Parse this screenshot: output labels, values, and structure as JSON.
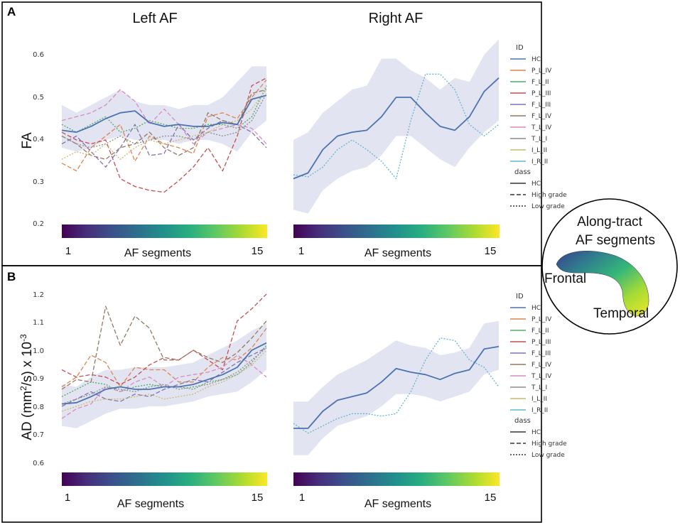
{
  "panels": [
    {
      "letter": "A",
      "ylabel": "FA",
      "yticks": [
        "0.2",
        "0.3",
        "0.4",
        "0.5",
        "0.6"
      ],
      "colorbar": {
        "min_label": "1",
        "max_label": "15",
        "label": "AF segments"
      }
    },
    {
      "letter": "B",
      "ylabel_main": "AD (mm",
      "ylabel_sup1": "2",
      "ylabel_mid": "/s) x 10",
      "ylabel_sup2": "-3",
      "yticks": [
        "0.6",
        "0.7",
        "0.8",
        "0.9",
        "1.0",
        "1.1",
        "1.2"
      ],
      "colorbar": {
        "min_label": "1",
        "max_label": "15",
        "label": "AF segments"
      }
    }
  ],
  "column_titles": [
    "Left AF",
    "Right AF"
  ],
  "legend": {
    "id_title": "ID",
    "ids": [
      "HC",
      "P_L_IV",
      "F_L_II",
      "P_L_III",
      "F_L_III",
      "F_L_IV",
      "T_L_IV",
      "T_L_I",
      "I_L_II",
      "I_R_II"
    ],
    "class_title": "dass",
    "classes": [
      "HC",
      "High grade",
      "Low grade"
    ]
  },
  "inset": {
    "title_line1": "Along-tract",
    "title_line2": "AF segments",
    "label_frontal": "Frontal",
    "label_temporal": "Temporal"
  },
  "colors": {
    "HC": "#4c72b0",
    "P_L_IV": "#dd8452",
    "F_L_II": "#55a868",
    "P_L_III": "#c44e52",
    "F_L_III": "#8172b3",
    "F_L_IV": "#937860",
    "T_L_IV": "#da8bc3",
    "T_L_I": "#8c8c8c",
    "I_L_II": "#ccb974",
    "I_R_II": "#64b5cd",
    "band": "#dde1ee"
  },
  "chart_data": [
    {
      "type": "line",
      "title": "Left AF",
      "ylabel": "FA",
      "xlabel": "AF segments",
      "x": [
        1,
        2,
        3,
        4,
        5,
        6,
        7,
        8,
        9,
        10,
        11,
        12,
        13,
        14,
        15
      ],
      "ylim": [
        0.18,
        0.62
      ],
      "hc_band": {
        "lower": [
          0.38,
          0.37,
          0.38,
          0.4,
          0.41,
          0.4,
          0.4,
          0.4,
          0.39,
          0.4,
          0.4,
          0.39,
          0.37,
          0.42,
          0.45
        ],
        "upper": [
          0.49,
          0.47,
          0.49,
          0.51,
          0.53,
          0.5,
          0.49,
          0.49,
          0.48,
          0.49,
          0.49,
          0.51,
          0.55,
          0.59,
          0.59
        ]
      },
      "series": [
        {
          "name": "HC",
          "class": "HC",
          "values": [
            0.425,
            0.42,
            0.435,
            0.455,
            0.47,
            0.475,
            0.445,
            0.435,
            0.44,
            0.435,
            0.435,
            0.445,
            0.44,
            0.505,
            0.515
          ]
        },
        {
          "name": "P_L_IV",
          "class": "High grade",
          "values": [
            0.34,
            0.32,
            0.38,
            0.41,
            0.44,
            0.345,
            0.41,
            0.39,
            0.38,
            0.365,
            0.46,
            0.47,
            0.455,
            0.51,
            0.555
          ]
        },
        {
          "name": "F_L_II",
          "class": "Low grade",
          "values": [
            0.44,
            0.42,
            0.44,
            0.46,
            0.42,
            0.43,
            0.45,
            0.44,
            0.43,
            0.43,
            0.44,
            0.44,
            0.43,
            0.46,
            0.54
          ]
        },
        {
          "name": "P_L_III",
          "class": "High grade",
          "values": [
            0.42,
            0.4,
            0.39,
            0.4,
            0.3,
            0.28,
            0.27,
            0.265,
            0.295,
            0.33,
            0.38,
            0.32,
            0.41,
            0.54,
            0.56
          ]
        },
        {
          "name": "F_L_III",
          "class": "High grade",
          "values": [
            0.39,
            0.41,
            0.37,
            0.33,
            0.38,
            0.44,
            0.36,
            0.365,
            0.44,
            0.4,
            0.43,
            0.45,
            0.44,
            0.42,
            0.38
          ]
        },
        {
          "name": "F_L_IV",
          "class": "High grade",
          "values": [
            0.41,
            0.39,
            0.36,
            0.35,
            0.38,
            0.39,
            0.42,
            0.38,
            0.36,
            0.38,
            0.47,
            0.45,
            0.44,
            0.52,
            0.53
          ]
        },
        {
          "name": "T_L_IV",
          "class": "High grade",
          "values": [
            0.45,
            0.46,
            0.47,
            0.49,
            0.53,
            0.5,
            0.44,
            0.48,
            0.44,
            0.39,
            0.42,
            0.43,
            0.44,
            0.43,
            0.39
          ]
        },
        {
          "name": "T_L_I",
          "class": "Low grade",
          "values": [
            0.41,
            0.39,
            0.38,
            0.39,
            0.41,
            0.39,
            0.4,
            0.41,
            0.41,
            0.4,
            0.42,
            0.41,
            0.42,
            0.45,
            0.52
          ]
        },
        {
          "name": "I_L_II",
          "class": "Low grade",
          "values": [
            0.35,
            0.37,
            0.36,
            0.39,
            0.35,
            0.38,
            0.4,
            0.39,
            0.4,
            0.41,
            0.42,
            0.44,
            0.45,
            0.48,
            0.53
          ]
        }
      ]
    },
    {
      "type": "line",
      "title": "Right AF",
      "ylabel": "FA",
      "xlabel": "AF segments",
      "x": [
        1,
        2,
        3,
        4,
        5,
        6,
        7,
        8,
        9,
        10,
        11,
        12,
        13,
        14,
        15
      ],
      "ylim": [
        0.18,
        0.62
      ],
      "hc_band": {
        "lower": [
          0.22,
          0.21,
          0.27,
          0.3,
          0.32,
          0.33,
          0.36,
          0.41,
          0.41,
          0.38,
          0.35,
          0.33,
          0.38,
          0.42,
          0.45
        ],
        "upper": [
          0.4,
          0.42,
          0.47,
          0.5,
          0.53,
          0.54,
          0.61,
          0.61,
          0.58,
          0.56,
          0.53,
          0.56,
          0.55,
          0.62,
          0.66
        ]
      },
      "series": [
        {
          "name": "HC",
          "class": "HC",
          "values": [
            0.3,
            0.315,
            0.375,
            0.41,
            0.42,
            0.425,
            0.46,
            0.51,
            0.51,
            0.47,
            0.435,
            0.425,
            0.46,
            0.525,
            0.56
          ]
        },
        {
          "name": "I_R_II",
          "class": "Low grade",
          "values": [
            0.31,
            0.305,
            0.33,
            0.375,
            0.4,
            0.375,
            0.345,
            0.3,
            0.45,
            0.57,
            0.57,
            0.53,
            0.44,
            0.41,
            0.44
          ]
        }
      ]
    },
    {
      "type": "line",
      "title": "Left AF",
      "ylabel": "AD (mm2/s) x 10-3",
      "xlabel": "AF segments",
      "x": [
        1,
        2,
        3,
        4,
        5,
        6,
        7,
        8,
        9,
        10,
        11,
        12,
        13,
        14,
        15
      ],
      "ylim": [
        0.57,
        1.26
      ],
      "hc_band": {
        "lower": [
          0.72,
          0.71,
          0.74,
          0.77,
          0.79,
          0.79,
          0.8,
          0.8,
          0.81,
          0.82,
          0.84,
          0.85,
          0.86,
          0.9,
          0.95
        ],
        "upper": [
          0.89,
          0.88,
          0.92,
          0.95,
          0.95,
          0.96,
          0.96,
          0.96,
          0.97,
          0.98,
          1.01,
          1.04,
          1.07,
          1.11,
          1.14
        ]
      },
      "series": [
        {
          "name": "HC",
          "class": "HC",
          "values": [
            0.81,
            0.815,
            0.84,
            0.87,
            0.88,
            0.87,
            0.87,
            0.88,
            0.88,
            0.89,
            0.91,
            0.93,
            0.96,
            1.03,
            1.06
          ]
        },
        {
          "name": "P_L_IV",
          "class": "High grade",
          "values": [
            0.88,
            0.92,
            1.01,
            0.98,
            0.88,
            0.96,
            0.95,
            0.95,
            0.9,
            0.9,
            0.96,
            1.0,
            0.99,
            1.04,
            1.12
          ]
        },
        {
          "name": "F_L_II",
          "class": "Low grade",
          "values": [
            0.84,
            0.87,
            0.9,
            0.89,
            0.86,
            0.88,
            0.89,
            0.88,
            0.88,
            0.87,
            0.9,
            0.91,
            0.93,
            0.98,
            1.05
          ]
        },
        {
          "name": "P_L_III",
          "class": "High grade",
          "values": [
            0.95,
            0.92,
            0.93,
            0.92,
            0.89,
            0.92,
            0.97,
            1.0,
            0.99,
            1.03,
            0.99,
            0.95,
            1.15,
            1.2,
            1.26
          ]
        },
        {
          "name": "F_L_III",
          "class": "High grade",
          "values": [
            0.8,
            0.83,
            0.86,
            0.83,
            0.82,
            0.85,
            0.84,
            0.87,
            0.89,
            0.91,
            0.9,
            0.94,
            0.98,
            1.01,
            1.04
          ]
        },
        {
          "name": "F_L_IV",
          "class": "High grade",
          "values": [
            0.87,
            0.91,
            0.9,
            1.21,
            1.05,
            1.17,
            1.12,
            0.99,
            0.99,
            1.03,
            1.0,
            0.98,
            1.02,
            1.08,
            1.15
          ]
        },
        {
          "name": "T_L_IV",
          "class": "High grade",
          "values": [
            0.75,
            0.79,
            0.81,
            0.88,
            0.86,
            0.9,
            0.92,
            0.88,
            0.92,
            0.93,
            0.94,
            0.96,
            1.01,
            0.97,
            0.92
          ]
        },
        {
          "name": "T_L_I",
          "class": "Low grade",
          "values": [
            0.81,
            0.83,
            0.85,
            0.88,
            0.87,
            0.86,
            0.88,
            0.89,
            0.87,
            0.88,
            0.89,
            0.91,
            0.94,
            0.99,
            1.04
          ]
        },
        {
          "name": "I_L_II",
          "class": "Low grade",
          "values": [
            0.78,
            0.8,
            0.82,
            0.83,
            0.83,
            0.84,
            0.85,
            0.83,
            0.84,
            0.85,
            0.88,
            0.9,
            0.93,
            0.97,
            1.03
          ]
        }
      ]
    },
    {
      "type": "line",
      "title": "Right AF",
      "ylabel": "AD (mm2/s) x 10-3",
      "xlabel": "AF segments",
      "x": [
        1,
        2,
        3,
        4,
        5,
        6,
        7,
        8,
        9,
        10,
        11,
        12,
        13,
        14,
        15
      ],
      "ylim": [
        0.57,
        1.26
      ],
      "hc_band": {
        "lower": [
          0.6,
          0.6,
          0.67,
          0.72,
          0.74,
          0.76,
          0.8,
          0.85,
          0.85,
          0.84,
          0.82,
          0.84,
          0.86,
          0.93,
          0.95
        ],
        "upper": [
          0.82,
          0.82,
          0.88,
          0.93,
          0.96,
          0.99,
          1.03,
          1.07,
          1.05,
          1.04,
          1.01,
          1.02,
          1.04,
          1.14,
          1.15
        ]
      },
      "series": [
        {
          "name": "HC",
          "class": "HC",
          "values": [
            0.71,
            0.71,
            0.78,
            0.825,
            0.84,
            0.855,
            0.9,
            0.955,
            0.94,
            0.93,
            0.91,
            0.935,
            0.95,
            1.035,
            1.045
          ]
        },
        {
          "name": "I_R_II",
          "class": "Low grade",
          "values": [
            0.73,
            0.69,
            0.72,
            0.75,
            0.77,
            0.77,
            0.76,
            0.77,
            0.86,
            0.99,
            1.08,
            1.07,
            0.99,
            0.96,
            0.88
          ]
        }
      ]
    }
  ]
}
